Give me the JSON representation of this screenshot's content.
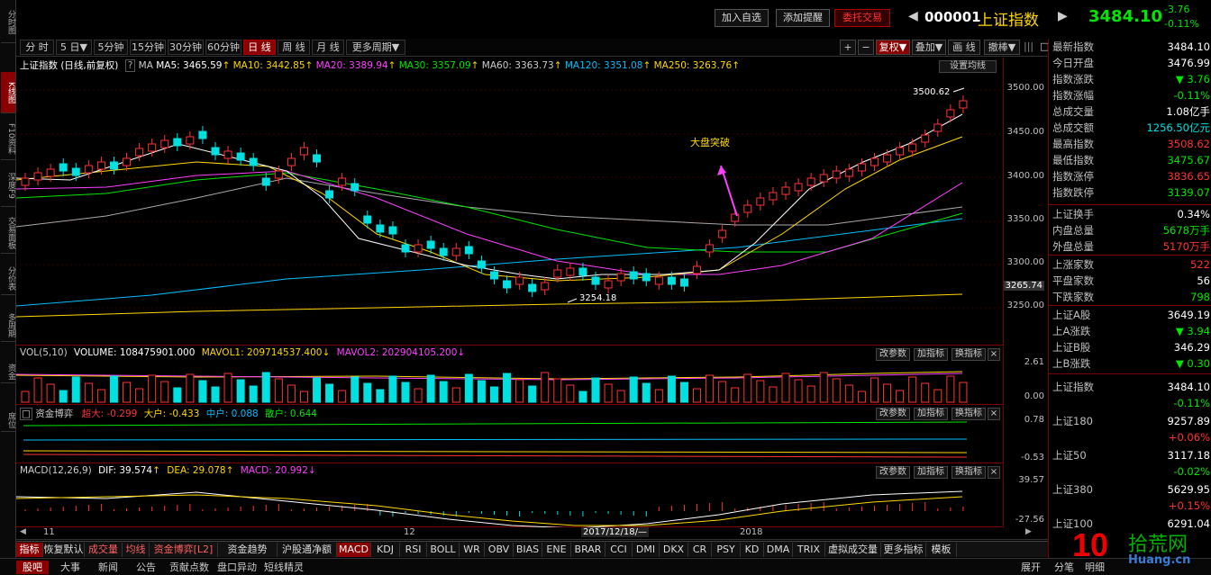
{
  "left_tabs": [
    "分时图",
    "K线图",
    "F10资料",
    "深度F9",
    "交易面板",
    "分价表",
    "多周期",
    "资金",
    "席位"
  ],
  "top": {
    "btn_add_watch": "加入自选",
    "btn_add_alert": "添加提醒",
    "btn_trade": "委托交易",
    "code": "000001",
    "name": "上证指数",
    "price": "3484.10",
    "change": "-3.76",
    "change_pct": "-0.11%"
  },
  "period_tabs": [
    "分 时",
    "5 日▼",
    "5分钟",
    "15分钟",
    "30分钟",
    "60分钟",
    "日 线",
    "周 线",
    "月 线",
    "更多周期▼"
  ],
  "period_active": 6,
  "right_tools": [
    "+",
    "−",
    "复权▼",
    "叠加▼",
    "画 线",
    "撤棒▼"
  ],
  "main_panel": {
    "title": "上证指数 (日线,前复权)",
    "ma_label": "MA",
    "ma5": "MA5: 3465.59",
    "ma10": "MA10: 3442.85",
    "ma20": "MA20: 3389.94",
    "ma30": "MA30: 3357.09",
    "ma60": "MA60: 3363.73",
    "ma120": "MA120: 3351.08",
    "ma250": "MA250: 3263.76",
    "settings_btn": "设置均线",
    "annotation": "大盘突破",
    "high_mark": "3500.62",
    "low_mark": "3254.18",
    "current_axis": "3265.74",
    "y_ticks": [
      "3500.00",
      "3450.00",
      "3400.00",
      "3350.00",
      "3300.00",
      "3250.00"
    ]
  },
  "vol_panel": {
    "title": "VOL(5,10)",
    "volume": "VOLUME: 108475901.000",
    "mavol1": "MAVOL1: 209714537.400",
    "mavol2": "MAVOL2: 202904105.200",
    "y_ticks": [
      "2.61",
      "0.00"
    ],
    "buttons": [
      "改参数",
      "加指标",
      "换指标"
    ]
  },
  "fund_panel": {
    "title": "资金博弈",
    "super": "超大: -0.299",
    "big": "大户: -0.433",
    "mid": "中户: 0.088",
    "small": "散户: 0.644",
    "y_ticks": [
      "0.78",
      "-0.53"
    ],
    "buttons": [
      "改参数",
      "加指标",
      "换指标"
    ]
  },
  "macd_panel": {
    "title": "MACD(12,26,9)",
    "dif": "DIF: 39.574",
    "dea": "DEA: 29.078",
    "macd": "MACD: 20.992",
    "y_ticks": [
      "39.57",
      "-27.56"
    ],
    "buttons": [
      "改参数",
      "加指标",
      "换指标"
    ]
  },
  "x_labels": {
    "m11": "11",
    "m12": "12",
    "cursor_date": "2017/12/18/—",
    "y2018": "2018"
  },
  "right_panel": [
    {
      "k": "最新指数",
      "v": "3484.10",
      "c": ""
    },
    {
      "k": "今日开盘",
      "v": "3476.99",
      "c": ""
    },
    {
      "k": "指数涨跌",
      "v": "▼ 3.76",
      "c": "green"
    },
    {
      "k": "指数涨幅",
      "v": "-0.11%",
      "c": "green"
    },
    {
      "k": "总成交量",
      "v": "1.08亿手",
      "c": ""
    },
    {
      "k": "总成交额",
      "v": "1256.50亿元",
      "c": "cyan"
    },
    {
      "k": "最高指数",
      "v": "3508.62",
      "c": "red"
    },
    {
      "k": "最低指数",
      "v": "3475.67",
      "c": "green"
    },
    {
      "k": "指数涨停",
      "v": "3836.65",
      "c": "red"
    },
    {
      "k": "指数跌停",
      "v": "3139.07",
      "c": "green"
    },
    {
      "k": "上证换手",
      "v": "0.34%",
      "c": ""
    },
    {
      "k": "内盘总量",
      "v": "5678万手",
      "c": "green"
    },
    {
      "k": "外盘总量",
      "v": "5170万手",
      "c": "red"
    },
    {
      "k": "上涨家数",
      "v": "522",
      "c": "red"
    },
    {
      "k": "平盘家数",
      "v": "56",
      "c": ""
    },
    {
      "k": "下跌家数",
      "v": "798",
      "c": "green"
    },
    {
      "k": "上证A股",
      "v": "3649.19",
      "c": ""
    },
    {
      "k": "上A涨跌",
      "v": "▼ 3.94",
      "c": "green"
    },
    {
      "k": "上证B股",
      "v": "346.29",
      "c": ""
    },
    {
      "k": "上B涨跌",
      "v": "▼ 0.30",
      "c": "green"
    }
  ],
  "right_indices": [
    {
      "k": "上证指数",
      "v": "3484.10",
      "pct": "-0.11%",
      "pc": "green"
    },
    {
      "k": "上证180",
      "v": "9257.89",
      "pct": "+0.06%",
      "pc": "red"
    },
    {
      "k": "上证50",
      "v": "3117.18",
      "pct": "-0.02%",
      "pc": "green"
    },
    {
      "k": "上证380",
      "v": "5629.95",
      "pct": "+0.15%",
      "pc": "red"
    },
    {
      "k": "上证100",
      "v": "6291.04",
      "pct": "",
      "pc": "red"
    }
  ],
  "bottom_tabs": [
    "指标",
    "恢复默认",
    "成交量",
    "均线",
    "资金博弈[L2]",
    "资金趋势[L2]",
    "沪股通净额",
    "MACD",
    "KDJ",
    "RSI",
    "BOLL",
    "WR",
    "OBV",
    "BIAS",
    "ENE",
    "BRAR",
    "CCI",
    "DMI",
    "DKX",
    "CR",
    "PSY",
    "KD",
    "DMA",
    "TRIX",
    "虚拟成交量",
    "更多指标",
    "模板"
  ],
  "status_tabs": [
    "股吧",
    "大事",
    "新闻",
    "公告",
    "贡献点数",
    "盘口异动",
    "短线精灵"
  ],
  "status_right": [
    "展开",
    "分笔",
    "明细"
  ],
  "watermark": {
    "num": "10",
    "text": "拾荒网",
    "url": "Huang.cn"
  }
}
